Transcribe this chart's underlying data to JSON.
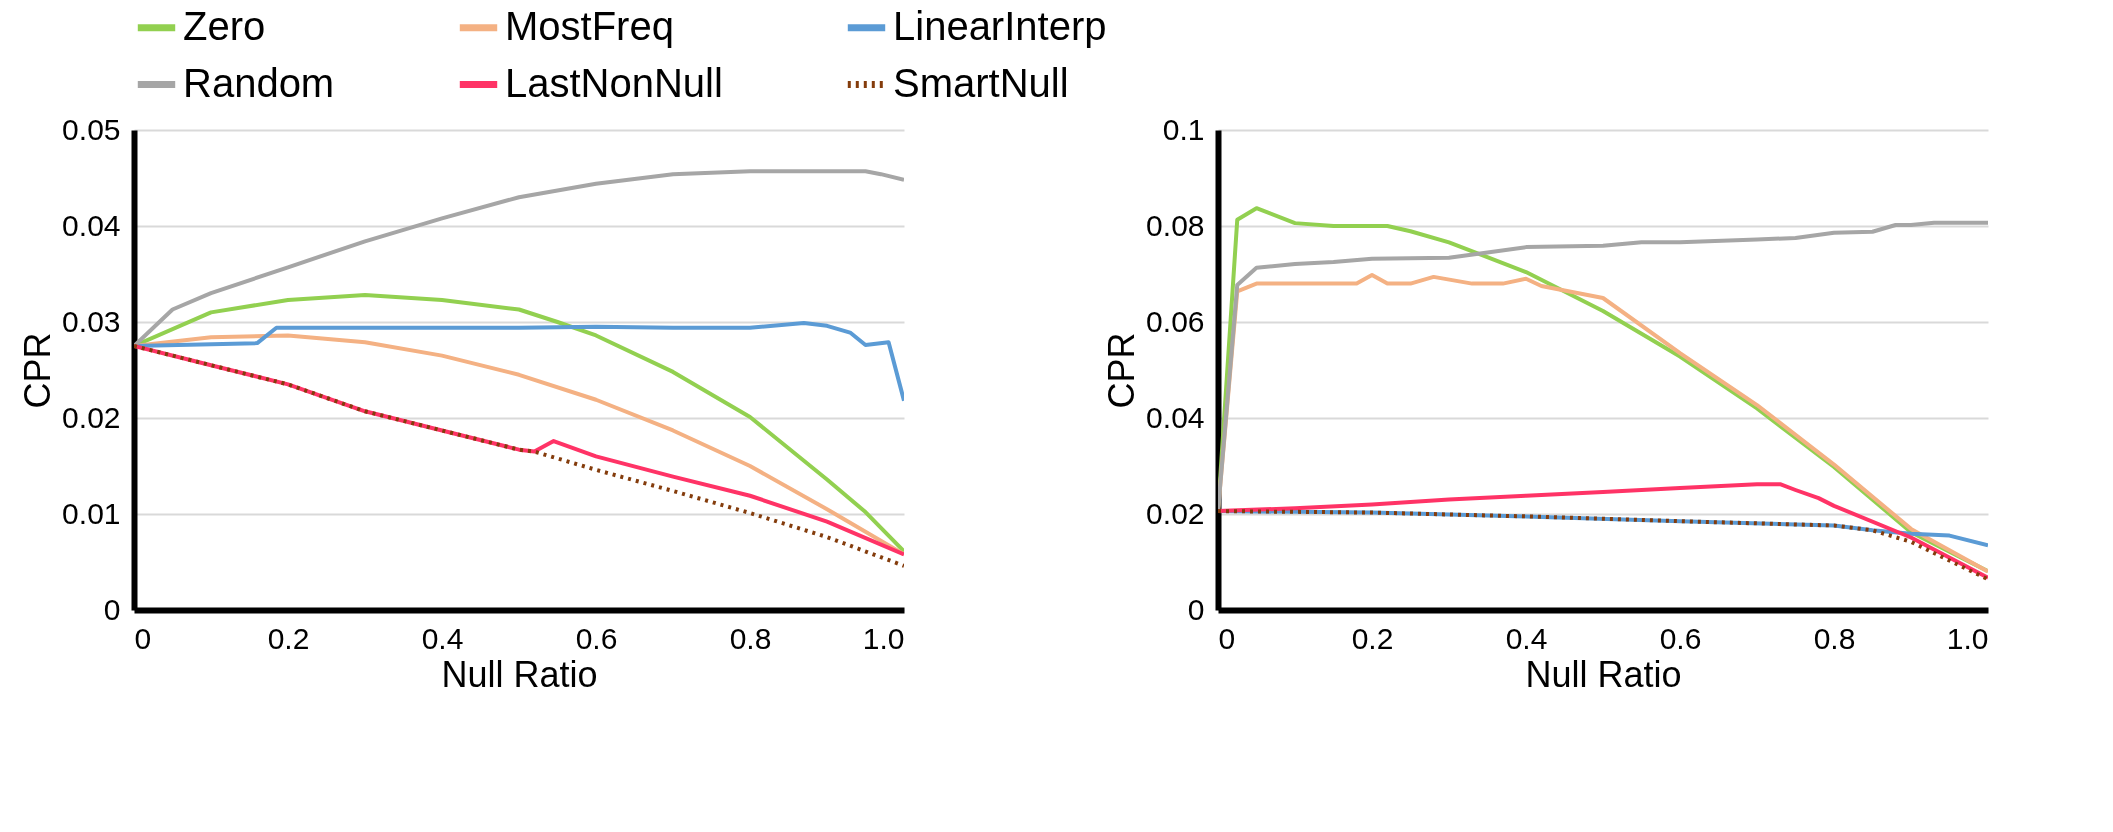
{
  "chart_data": [
    {
      "type": "line",
      "xlabel": "Null Ratio",
      "ylabel": "CPR",
      "xlim": [
        0,
        1
      ],
      "ylim": [
        0,
        0.05
      ],
      "xticks": [
        0,
        0.2,
        0.4,
        0.6,
        0.8,
        {
          "value": 1,
          "label": "1.0"
        }
      ],
      "yticks": [
        0,
        0.01,
        0.02,
        0.03,
        0.04,
        0.05
      ],
      "grid": "y",
      "legend": "top",
      "line_style": "solid",
      "series": [
        {
          "name": "Zero",
          "color": "#92d050",
          "x": [
            0,
            0.1,
            0.2,
            0.3,
            0.4,
            0.5,
            0.55,
            0.6,
            0.7,
            0.8,
            0.9,
            0.95,
            1.0
          ],
          "values": [
            0.0275,
            0.031,
            0.0323,
            0.0328,
            0.0323,
            0.0313,
            0.03,
            0.0286,
            0.0248,
            0.0201,
            0.0136,
            0.0102,
            0.0061
          ]
        },
        {
          "name": "MostFreq",
          "color": "#f4b183",
          "x": [
            0,
            0.1,
            0.2,
            0.3,
            0.4,
            0.5,
            0.6,
            0.7,
            0.8,
            0.9,
            1.0
          ],
          "values": [
            0.0275,
            0.0284,
            0.0286,
            0.0279,
            0.0265,
            0.0245,
            0.0219,
            0.0187,
            0.015,
            0.0105,
            0.0058
          ]
        },
        {
          "name": "LinearInterp",
          "color": "#5b9bd5",
          "x": [
            0,
            0.16,
            0.185,
            0.5,
            0.6,
            0.7,
            0.8,
            0.87,
            0.9,
            0.93,
            0.95,
            0.98,
            1.0
          ],
          "values": [
            0.0275,
            0.0278,
            0.0294,
            0.0294,
            0.0295,
            0.0294,
            0.0294,
            0.0299,
            0.0296,
            0.0289,
            0.0276,
            0.0279,
            0.0218
          ]
        },
        {
          "name": "Random",
          "color": "#a6a6a6",
          "x": [
            0,
            0.05,
            0.1,
            0.2,
            0.3,
            0.4,
            0.5,
            0.6,
            0.7,
            0.8,
            0.9,
            0.95,
            0.97,
            1.0
          ],
          "values": [
            0.0275,
            0.0313,
            0.033,
            0.0357,
            0.0384,
            0.0408,
            0.043,
            0.0444,
            0.0454,
            0.0457,
            0.0457,
            0.0457,
            0.0454,
            0.0448
          ]
        },
        {
          "name": "LastNonNull",
          "color": "#ff3366",
          "x": [
            0,
            0.1,
            0.2,
            0.3,
            0.4,
            0.5,
            0.52,
            0.545,
            0.6,
            0.7,
            0.8,
            0.9,
            1.0
          ],
          "values": [
            0.0275,
            0.0255,
            0.0235,
            0.0207,
            0.0187,
            0.0167,
            0.0165,
            0.0176,
            0.016,
            0.0139,
            0.0119,
            0.0092,
            0.0058
          ]
        },
        {
          "name": "SmartNull",
          "color": "#843c0c",
          "line_style": "dotted",
          "x": [
            0,
            0.1,
            0.2,
            0.3,
            0.4,
            0.5,
            0.52,
            0.6,
            0.7,
            0.8,
            0.9,
            1.0
          ],
          "values": [
            0.0275,
            0.0255,
            0.0235,
            0.0207,
            0.0187,
            0.0167,
            0.0165,
            0.0146,
            0.0124,
            0.0101,
            0.0076,
            0.0046
          ]
        }
      ]
    },
    {
      "type": "line",
      "xlabel": "Null Ratio",
      "ylabel": "CPR",
      "xlim": [
        0,
        1
      ],
      "ylim": [
        0,
        0.1
      ],
      "xticks": [
        0,
        0.2,
        0.4,
        0.6,
        0.8,
        {
          "value": 1,
          "label": "1.0"
        }
      ],
      "yticks": [
        0,
        0.02,
        0.04,
        0.06,
        0.08,
        0.1
      ],
      "grid": "y",
      "legend": "top",
      "line_style": "solid",
      "series": [
        {
          "name": "Zero",
          "color": "#92d050",
          "x": [
            0,
            0.025,
            0.05,
            0.1,
            0.15,
            0.2,
            0.22,
            0.25,
            0.3,
            0.4,
            0.5,
            0.6,
            0.7,
            0.8,
            0.9,
            1.0
          ],
          "values": [
            0.0206,
            0.0813,
            0.0837,
            0.0806,
            0.08,
            0.08,
            0.08,
            0.0789,
            0.0766,
            0.0704,
            0.0623,
            0.0528,
            0.042,
            0.0298,
            0.0162,
            0.0081
          ]
        },
        {
          "name": "MostFreq",
          "color": "#f4b183",
          "x": [
            0,
            0.025,
            0.05,
            0.1,
            0.15,
            0.18,
            0.2,
            0.22,
            0.25,
            0.28,
            0.33,
            0.37,
            0.4,
            0.42,
            0.5,
            0.6,
            0.7,
            0.8,
            0.9,
            1.0
          ],
          "values": [
            0.0206,
            0.0664,
            0.068,
            0.068,
            0.068,
            0.068,
            0.0698,
            0.068,
            0.068,
            0.0694,
            0.068,
            0.068,
            0.069,
            0.0675,
            0.065,
            0.0535,
            0.0427,
            0.0303,
            0.0169,
            0.008
          ]
        },
        {
          "name": "LinearInterp",
          "color": "#5b9bd5",
          "x": [
            0,
            0.2,
            0.4,
            0.6,
            0.8,
            0.85,
            0.9,
            0.95,
            1.0
          ],
          "values": [
            0.0206,
            0.0203,
            0.0195,
            0.0185,
            0.0176,
            0.0166,
            0.0159,
            0.0155,
            0.0135
          ]
        },
        {
          "name": "Random",
          "color": "#a6a6a6",
          "x": [
            0,
            0.025,
            0.05,
            0.1,
            0.15,
            0.2,
            0.3,
            0.35,
            0.4,
            0.5,
            0.55,
            0.6,
            0.7,
            0.75,
            0.8,
            0.85,
            0.88,
            0.9,
            0.93,
            1.0
          ],
          "values": [
            0.0206,
            0.0677,
            0.0713,
            0.0721,
            0.0725,
            0.0732,
            0.0734,
            0.0745,
            0.0756,
            0.0759,
            0.0766,
            0.0766,
            0.0772,
            0.0775,
            0.0786,
            0.0788,
            0.0802,
            0.0802,
            0.0807,
            0.0807
          ]
        },
        {
          "name": "LastNonNull",
          "color": "#ff3366",
          "x": [
            0,
            0.1,
            0.2,
            0.3,
            0.4,
            0.5,
            0.6,
            0.7,
            0.73,
            0.75,
            0.78,
            0.8,
            0.9,
            1.0
          ],
          "values": [
            0.0206,
            0.0212,
            0.022,
            0.023,
            0.0238,
            0.0246,
            0.0254,
            0.0262,
            0.0262,
            0.025,
            0.0233,
            0.0217,
            0.0151,
            0.0067
          ]
        },
        {
          "name": "SmartNull",
          "color": "#843c0c",
          "line_style": "dotted",
          "x": [
            0,
            0.2,
            0.4,
            0.6,
            0.8,
            0.85,
            0.9,
            1.0
          ],
          "values": [
            0.0206,
            0.0203,
            0.0195,
            0.0185,
            0.0176,
            0.0166,
            0.0142,
            0.0064
          ]
        }
      ]
    }
  ]
}
